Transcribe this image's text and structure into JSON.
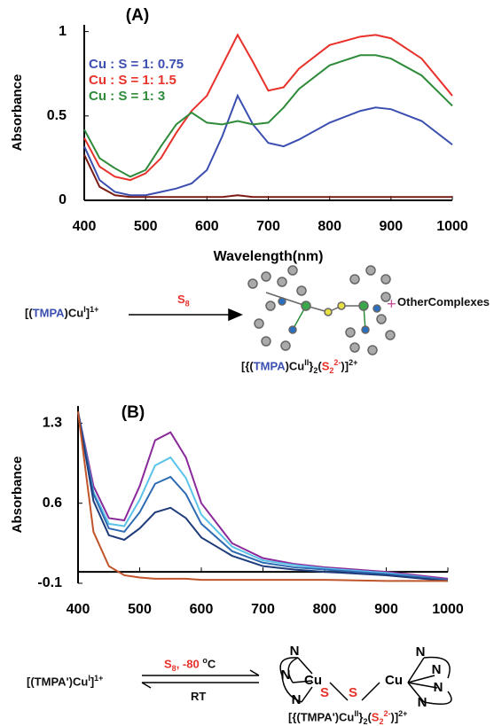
{
  "chart_data": [
    {
      "type": "line",
      "panel_label": "(A)",
      "y_label": "Absorbance",
      "x_label": "Wavelength(nm)",
      "xlim": [
        400,
        1000
      ],
      "xticks": [
        400,
        500,
        600,
        700,
        800,
        900,
        1000
      ],
      "ylim": [
        0,
        1.04
      ],
      "yticks": [
        0,
        0.5,
        1
      ],
      "grid": false,
      "legend": "upper left",
      "x": [
        400,
        425,
        450,
        475,
        500,
        525,
        550,
        575,
        600,
        625,
        650,
        675,
        700,
        725,
        750,
        800,
        850,
        875,
        900,
        950,
        1000
      ],
      "series": [
        {
          "name": "Cu : S = 1: 0.75",
          "color": "#3b4fb0",
          "values": [
            0.32,
            0.12,
            0.05,
            0.03,
            0.03,
            0.05,
            0.07,
            0.1,
            0.18,
            0.38,
            0.62,
            0.45,
            0.34,
            0.32,
            0.36,
            0.46,
            0.53,
            0.55,
            0.54,
            0.47,
            0.33
          ]
        },
        {
          "name": "Cu : S = 1: 1.5",
          "color": "#e8312a",
          "values": [
            0.37,
            0.2,
            0.14,
            0.12,
            0.16,
            0.25,
            0.4,
            0.53,
            0.62,
            0.8,
            0.98,
            0.82,
            0.65,
            0.67,
            0.78,
            0.92,
            0.97,
            0.98,
            0.96,
            0.84,
            0.62
          ]
        },
        {
          "name": "Cu : S = 1: 3",
          "color": "#2e8b3a",
          "values": [
            0.42,
            0.25,
            0.19,
            0.14,
            0.18,
            0.32,
            0.45,
            0.52,
            0.46,
            0.45,
            0.47,
            0.45,
            0.46,
            0.55,
            0.66,
            0.8,
            0.86,
            0.86,
            0.84,
            0.74,
            0.56
          ]
        },
        {
          "color": "#7a1a14",
          "values": [
            0.27,
            0.08,
            0.03,
            0.02,
            0.02,
            0.02,
            0.02,
            0.02,
            0.02,
            0.02,
            0.03,
            0.02,
            0.02,
            0.02,
            0.02,
            0.02,
            0.02,
            0.02,
            0.02,
            0.02,
            0.02
          ]
        }
      ]
    },
    {
      "type": "line",
      "panel_label": "(B)",
      "y_label": "Absorbance",
      "xlim": [
        400,
        1000
      ],
      "xticks": [
        400,
        500,
        600,
        700,
        800,
        900,
        1000
      ],
      "ylim": [
        -0.1,
        1.45
      ],
      "yticks": [
        -0.1,
        0.6,
        1.3
      ],
      "grid": false,
      "x": [
        400,
        425,
        450,
        475,
        500,
        525,
        550,
        575,
        600,
        650,
        700,
        750,
        800,
        900,
        1000
      ],
      "series": [
        {
          "color": "#8a2a9a",
          "values": [
            1.4,
            0.75,
            0.47,
            0.45,
            0.75,
            1.15,
            1.22,
            1.0,
            0.6,
            0.25,
            0.12,
            0.07,
            0.04,
            0.0,
            -0.06
          ]
        },
        {
          "color": "#5bc3ea",
          "values": [
            1.4,
            0.7,
            0.42,
            0.4,
            0.63,
            0.93,
            1.0,
            0.82,
            0.5,
            0.22,
            0.1,
            0.06,
            0.03,
            -0.01,
            -0.07
          ]
        },
        {
          "color": "#2f6bb3",
          "values": [
            1.4,
            0.68,
            0.38,
            0.35,
            0.52,
            0.77,
            0.83,
            0.68,
            0.42,
            0.18,
            0.08,
            0.04,
            0.02,
            -0.02,
            -0.07
          ]
        },
        {
          "color": "#1f3c7a",
          "values": [
            1.4,
            0.62,
            0.32,
            0.28,
            0.38,
            0.52,
            0.56,
            0.47,
            0.3,
            0.14,
            0.05,
            0.02,
            0.0,
            -0.03,
            -0.08
          ]
        },
        {
          "color": "#c0542a",
          "values": [
            1.4,
            0.35,
            0.05,
            -0.03,
            -0.05,
            -0.06,
            -0.06,
            -0.06,
            -0.07,
            -0.07,
            -0.07,
            -0.07,
            -0.07,
            -0.08,
            -0.08
          ]
        }
      ]
    }
  ],
  "schemes": {
    "a": {
      "reactant": [
        "[(",
        "TMPA",
        ")Cu",
        "I",
        "]",
        "1+"
      ],
      "reagent": [
        "S",
        "8"
      ],
      "product": [
        "[{(",
        "TMPA",
        ")Cu",
        "II",
        "}",
        "2",
        "(",
        "S",
        "2",
        "2-",
        ")]",
        "2+"
      ],
      "plus": "+",
      "other": [
        "Other",
        "Complexes"
      ]
    },
    "b": {
      "reactant": [
        "[(",
        "TMPA'",
        ")Cu",
        "I",
        "]",
        "1+"
      ],
      "forward": [
        "S",
        "8",
        ", -80 ",
        "o",
        "C"
      ],
      "reverse": "RT",
      "product": [
        "[{(",
        "TMPA'",
        ")Cu",
        "II",
        "}",
        "2",
        "(",
        "S",
        "2",
        "2-",
        ")]",
        "2+"
      ],
      "atoms": [
        "N",
        "N",
        "N",
        "Cu",
        "S",
        "S",
        "Cu",
        "N",
        "N",
        "N",
        "N"
      ]
    }
  }
}
